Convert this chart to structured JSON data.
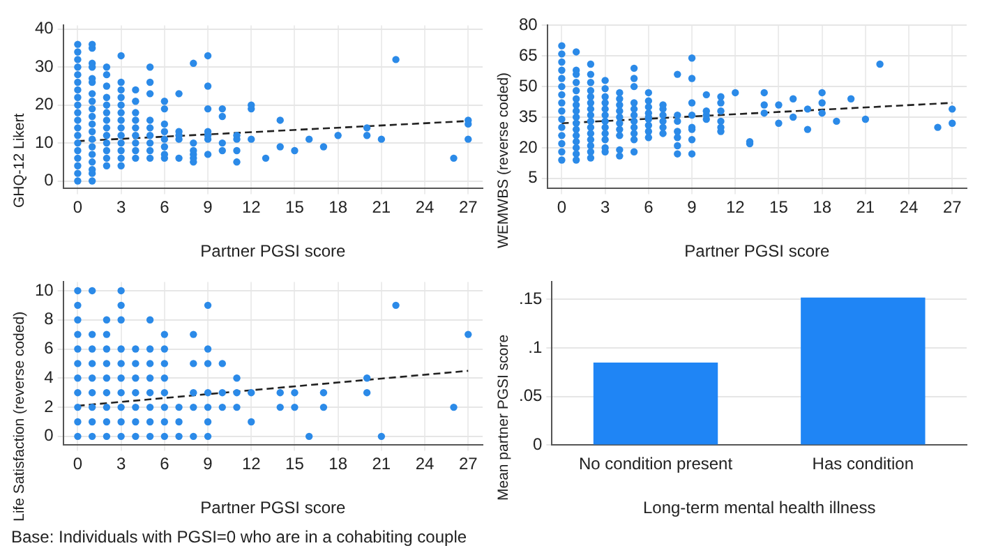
{
  "chart_data": [
    {
      "type": "scatter",
      "xlabel": "Partner PGSI score",
      "ylabel": "GHQ-12 Likert",
      "xlim": [
        -1,
        28
      ],
      "xticks": [
        0,
        3,
        6,
        9,
        12,
        15,
        18,
        21,
        24,
        27
      ],
      "ylim": [
        -2,
        41
      ],
      "yticks": [
        0,
        10,
        20,
        30,
        40
      ],
      "grid": true,
      "series": [
        {
          "type": "scatter",
          "color": "#2b8ae8",
          "x": [
            0,
            0,
            0,
            0,
            0,
            0,
            0,
            0,
            0,
            0,
            0,
            0,
            0,
            0,
            0,
            0,
            0,
            0,
            0,
            1,
            1,
            1,
            1,
            1,
            1,
            1,
            1,
            1,
            1,
            1,
            1,
            1,
            1,
            1,
            1,
            1,
            1,
            1,
            2,
            2,
            2,
            2,
            2,
            2,
            2,
            2,
            2,
            2,
            2,
            2,
            2,
            3,
            3,
            3,
            3,
            3,
            3,
            3,
            3,
            3,
            3,
            3,
            3,
            3,
            4,
            4,
            4,
            4,
            4,
            4,
            4,
            4,
            4,
            5,
            5,
            5,
            5,
            5,
            5,
            5,
            5,
            5,
            6,
            6,
            6,
            6,
            6,
            6,
            6,
            6,
            7,
            7,
            7,
            7,
            7,
            8,
            8,
            8,
            8,
            8,
            8,
            9,
            9,
            9,
            9,
            9,
            9,
            9,
            10,
            10,
            10,
            10,
            11,
            11,
            11,
            11,
            12,
            12,
            12,
            13,
            14,
            14,
            15,
            16,
            17,
            18,
            20,
            20,
            21,
            22,
            26,
            27,
            27,
            27
          ],
          "values": [
            0,
            2,
            4,
            6,
            8,
            10,
            12,
            14,
            16,
            18,
            20,
            22,
            24,
            26,
            28,
            30,
            32,
            34,
            36,
            0,
            2,
            3,
            5,
            7,
            9,
            11,
            13,
            15,
            17,
            19,
            21,
            23,
            26,
            27,
            30,
            31,
            35,
            36,
            4,
            6,
            8,
            10,
            12,
            14,
            16,
            18,
            20,
            22,
            25,
            28,
            30,
            4,
            6,
            8,
            10,
            12,
            14,
            16,
            18,
            20,
            22,
            24,
            26,
            33,
            6,
            8,
            10,
            12,
            14,
            16,
            18,
            21,
            24,
            6,
            8,
            10,
            12,
            14,
            16,
            23,
            26,
            30,
            6,
            7,
            9,
            11,
            13,
            15,
            19,
            21,
            6,
            11,
            12,
            13,
            23,
            5,
            6,
            7,
            8,
            10,
            31,
            7,
            11,
            12,
            13,
            19,
            25,
            33,
            8,
            10,
            17,
            19,
            5,
            8,
            11,
            12,
            11,
            19,
            20,
            6,
            9,
            16,
            8,
            11,
            9,
            12,
            12,
            14,
            11,
            32,
            6,
            11,
            15,
            16
          ]
        },
        {
          "type": "line",
          "color": "#222222",
          "line_style": "dashed",
          "x": [
            0,
            27
          ],
          "values": [
            10.5,
            15.8
          ],
          "marker": "none"
        }
      ]
    },
    {
      "type": "scatter",
      "xlabel": "Partner PGSI score",
      "ylabel": "WEMWBS (reverse coded)",
      "xlim": [
        -1,
        28
      ],
      "xticks": [
        0,
        3,
        6,
        9,
        12,
        15,
        18,
        21,
        24,
        27
      ],
      "ylim": [
        0,
        80
      ],
      "yticks": [
        5,
        20,
        35,
        50,
        65,
        80
      ],
      "grid": true,
      "series": [
        {
          "type": "scatter",
          "color": "#2b8ae8",
          "x": [
            0,
            0,
            0,
            0,
            0,
            0,
            0,
            0,
            0,
            0,
            0,
            0,
            0,
            0,
            0,
            1,
            1,
            1,
            1,
            1,
            1,
            1,
            1,
            1,
            1,
            1,
            1,
            1,
            1,
            1,
            1,
            2,
            2,
            2,
            2,
            2,
            2,
            2,
            2,
            2,
            2,
            2,
            2,
            2,
            2,
            2,
            3,
            3,
            3,
            3,
            3,
            3,
            3,
            3,
            3,
            3,
            3,
            3,
            4,
            4,
            4,
            4,
            4,
            4,
            4,
            4,
            4,
            4,
            5,
            5,
            5,
            5,
            5,
            5,
            5,
            5,
            5,
            5,
            5,
            6,
            6,
            6,
            6,
            6,
            6,
            6,
            6,
            6,
            7,
            7,
            7,
            7,
            7,
            7,
            8,
            8,
            8,
            8,
            8,
            8,
            8,
            9,
            9,
            9,
            9,
            9,
            9,
            9,
            9,
            10,
            10,
            10,
            10,
            11,
            11,
            11,
            11,
            11,
            11,
            12,
            13,
            13,
            14,
            14,
            14,
            15,
            15,
            16,
            16,
            17,
            17,
            18,
            18,
            18,
            19,
            20,
            21,
            22,
            26,
            27,
            27
          ],
          "values": [
            14,
            18,
            22,
            26,
            30,
            34,
            38,
            42,
            46,
            50,
            54,
            58,
            62,
            66,
            70,
            14,
            17,
            20,
            23,
            26,
            29,
            32,
            35,
            38,
            41,
            44,
            48,
            52,
            56,
            58,
            67,
            15,
            18,
            21,
            24,
            27,
            30,
            33,
            36,
            39,
            42,
            45,
            48,
            52,
            56,
            61,
            18,
            20,
            24,
            27,
            30,
            33,
            36,
            39,
            42,
            45,
            49,
            53,
            16,
            19,
            26,
            29,
            32,
            35,
            38,
            41,
            44,
            47,
            18,
            24,
            27,
            30,
            33,
            36,
            39,
            42,
            50,
            54,
            59,
            25,
            28,
            31,
            34,
            37,
            40,
            43,
            47,
            35,
            27,
            30,
            33,
            36,
            39,
            41,
            17,
            21,
            25,
            28,
            33,
            36,
            56,
            17,
            24,
            29,
            30,
            36,
            42,
            54,
            64,
            34,
            36,
            38,
            46,
            28,
            30,
            33,
            38,
            42,
            45,
            47,
            22,
            23,
            37,
            41,
            47,
            32,
            41,
            35,
            44,
            29,
            39,
            37,
            42,
            47,
            33,
            44,
            34,
            61,
            30,
            32,
            39
          ]
        },
        {
          "type": "line",
          "color": "#222222",
          "line_style": "dashed",
          "x": [
            0,
            27
          ],
          "values": [
            32,
            42
          ],
          "marker": "none"
        }
      ]
    },
    {
      "type": "scatter",
      "xlabel": "Partner PGSI score",
      "ylabel": "Life Satisfaction (reverse coded)",
      "xlim": [
        -1,
        28
      ],
      "xticks": [
        0,
        3,
        6,
        9,
        12,
        15,
        18,
        21,
        24,
        27
      ],
      "ylim": [
        -0.6,
        10.6
      ],
      "yticks": [
        0,
        2,
        4,
        6,
        8,
        10
      ],
      "grid": true,
      "series": [
        {
          "type": "scatter",
          "color": "#2b8ae8",
          "x": [
            0,
            0,
            0,
            0,
            0,
            0,
            0,
            0,
            0,
            0,
            0,
            1,
            1,
            1,
            1,
            1,
            1,
            1,
            1,
            1,
            2,
            2,
            2,
            2,
            2,
            2,
            2,
            2,
            2,
            3,
            3,
            3,
            3,
            3,
            3,
            3,
            3,
            3,
            3,
            4,
            4,
            4,
            4,
            4,
            4,
            4,
            5,
            5,
            5,
            5,
            5,
            5,
            5,
            5,
            6,
            6,
            6,
            6,
            6,
            6,
            6,
            6,
            7,
            7,
            7,
            8,
            8,
            8,
            8,
            8,
            9,
            9,
            9,
            9,
            9,
            9,
            9,
            10,
            10,
            10,
            11,
            11,
            11,
            12,
            12,
            14,
            14,
            15,
            15,
            16,
            17,
            17,
            20,
            20,
            21,
            22,
            26,
            27
          ],
          "values": [
            0,
            1,
            2,
            3,
            4,
            5,
            6,
            7,
            8,
            9,
            10,
            0,
            1,
            2,
            3,
            4,
            5,
            6,
            7,
            10,
            0,
            1,
            2,
            3,
            4,
            5,
            6,
            7,
            8,
            0,
            1,
            2,
            3,
            4,
            5,
            6,
            8,
            9,
            10,
            0,
            1,
            2,
            3,
            4,
            5,
            6,
            0,
            1,
            2,
            3,
            4,
            5,
            6,
            8,
            0,
            1,
            2,
            3,
            4,
            5,
            6,
            7,
            0,
            1,
            2,
            0,
            2,
            3,
            5,
            7,
            0,
            1,
            2,
            3,
            5,
            6,
            9,
            2,
            3,
            5,
            2,
            3,
            4,
            1,
            3,
            2,
            3,
            2,
            3,
            0,
            2,
            3,
            3,
            4,
            0,
            9,
            2,
            7
          ]
        },
        {
          "type": "line",
          "color": "#222222",
          "line_style": "dashed",
          "x": [
            0,
            27
          ],
          "values": [
            2.1,
            4.5
          ],
          "marker": "none"
        }
      ]
    },
    {
      "type": "bar",
      "xlabel": "Long-term mental health illness",
      "ylabel": "Mean partner PGSI score",
      "categories": [
        "No condition present",
        "Has condition"
      ],
      "values": [
        0.085,
        0.152
      ],
      "color": "#1f85f5",
      "ylim": [
        0,
        0.168
      ],
      "yticks": [
        0,
        {
          "value": 0.05,
          "label": ".05"
        },
        {
          "value": 0.1,
          "label": ".1"
        },
        {
          "value": 0.15,
          "label": ".15"
        }
      ],
      "grid": "y",
      "annotations": [
        "Base: Individuals with PGSI=0 who are in a cohabiting couple"
      ]
    }
  ]
}
